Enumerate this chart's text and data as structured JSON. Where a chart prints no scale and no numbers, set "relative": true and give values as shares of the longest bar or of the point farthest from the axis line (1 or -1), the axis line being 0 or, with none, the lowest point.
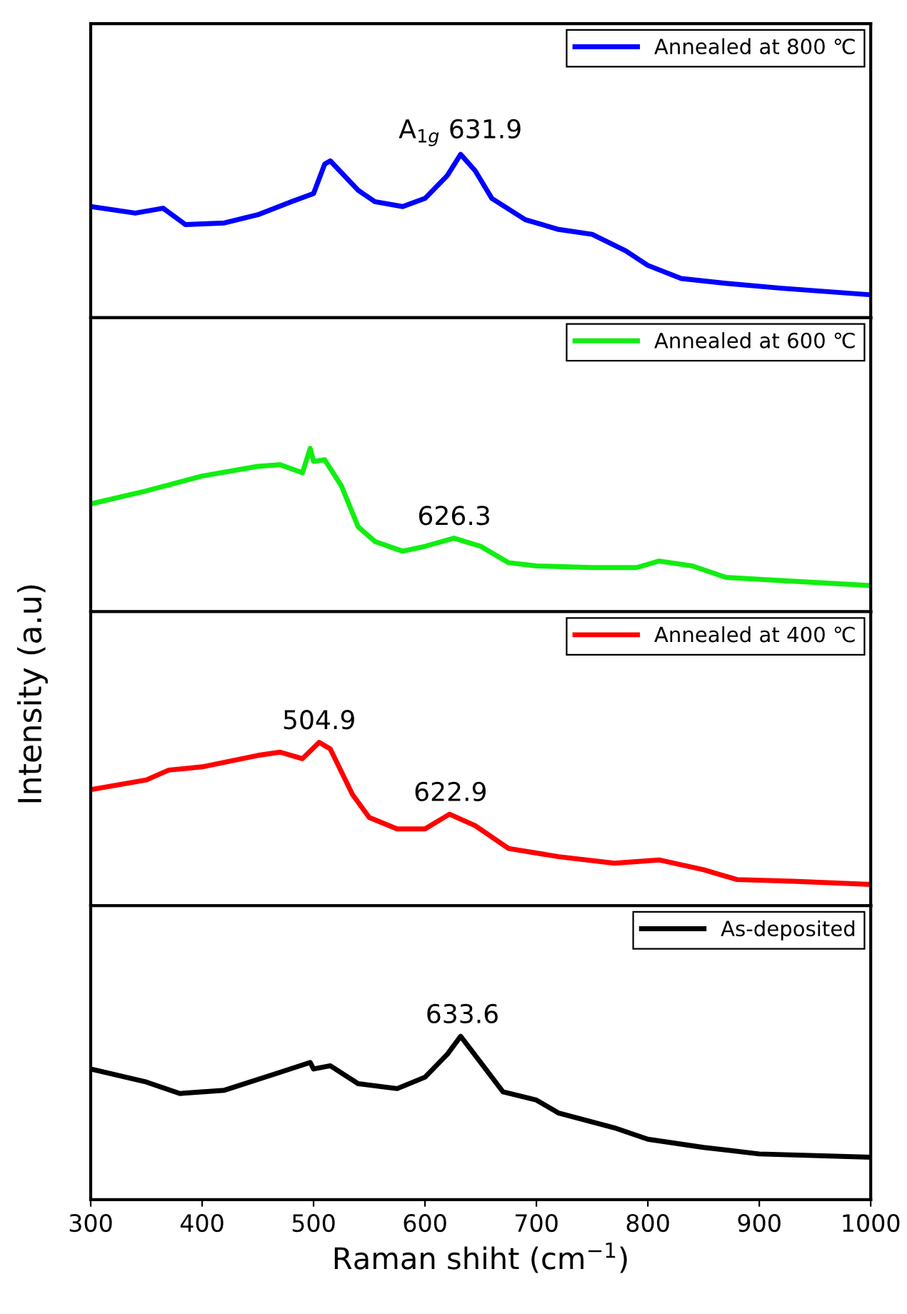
{
  "chart_data": [
    {
      "type": "line",
      "relative": true,
      "xlim": [
        300,
        1000
      ],
      "xticks": [
        300,
        400,
        500,
        600,
        700,
        800,
        900,
        1000
      ],
      "tick_labels": false,
      "legend": "top right",
      "series": [
        {
          "name": "Annealed at 800 ℃",
          "color": "#0000ff",
          "x": [
            300,
            340,
            365,
            385,
            420,
            450,
            480,
            500,
            510,
            515,
            540,
            555,
            580,
            600,
            620,
            632,
            645,
            660,
            690,
            720,
            750,
            780,
            800,
            830,
            870,
            920,
            1000
          ],
          "values": [
            0.68,
            0.64,
            0.67,
            0.57,
            0.58,
            0.63,
            0.71,
            0.76,
            0.94,
            0.96,
            0.78,
            0.71,
            0.68,
            0.73,
            0.87,
            1.0,
            0.9,
            0.73,
            0.6,
            0.54,
            0.51,
            0.41,
            0.32,
            0.24,
            0.21,
            0.18,
            0.14
          ]
        }
      ],
      "annotations": [
        {
          "text": "A$_{1g}$ 631.9",
          "x": 631.9,
          "y": 1.0
        }
      ]
    },
    {
      "type": "line",
      "relative": true,
      "xlim": [
        300,
        1000
      ],
      "xticks": [
        300,
        400,
        500,
        600,
        700,
        800,
        900,
        1000
      ],
      "tick_labels": false,
      "legend": "top right",
      "series": [
        {
          "name": "Annealed at 600 ℃",
          "color": "#11ee11",
          "x": [
            300,
            350,
            400,
            450,
            470,
            490,
            497,
            500,
            510,
            525,
            540,
            555,
            580,
            600,
            626,
            650,
            675,
            700,
            750,
            790,
            810,
            840,
            870,
            920,
            1000
          ],
          "values": [
            0.66,
            0.74,
            0.83,
            0.89,
            0.9,
            0.85,
            1.0,
            0.92,
            0.93,
            0.77,
            0.52,
            0.43,
            0.37,
            0.4,
            0.45,
            0.4,
            0.3,
            0.28,
            0.27,
            0.27,
            0.31,
            0.28,
            0.21,
            0.19,
            0.16
          ]
        }
      ],
      "annotations": [
        {
          "text": "626.3",
          "x": 626.3,
          "y": 0.45
        }
      ]
    },
    {
      "type": "line",
      "relative": true,
      "xlim": [
        300,
        1000
      ],
      "xticks": [
        300,
        400,
        500,
        600,
        700,
        800,
        900,
        1000
      ],
      "tick_labels": false,
      "legend": "top right",
      "ylabel": "Intensity (a.u)",
      "series": [
        {
          "name": "Annealed at 400 ℃",
          "color": "#ff0000",
          "x": [
            300,
            350,
            370,
            400,
            450,
            470,
            490,
            505,
            515,
            535,
            550,
            575,
            600,
            622,
            645,
            675,
            720,
            770,
            810,
            850,
            880,
            930,
            1000
          ],
          "values": [
            0.71,
            0.77,
            0.83,
            0.85,
            0.92,
            0.94,
            0.9,
            1.0,
            0.96,
            0.68,
            0.54,
            0.47,
            0.47,
            0.56,
            0.49,
            0.35,
            0.3,
            0.26,
            0.28,
            0.22,
            0.16,
            0.15,
            0.13
          ]
        }
      ],
      "annotations": [
        {
          "text": "504.9",
          "x": 504.9,
          "y": 1.0
        },
        {
          "text": "622.9",
          "x": 622.9,
          "y": 0.56
        }
      ]
    },
    {
      "type": "line",
      "relative": true,
      "xlim": [
        300,
        1000
      ],
      "xticks": [
        300,
        400,
        500,
        600,
        700,
        800,
        900,
        1000
      ],
      "tick_labels": "x",
      "legend": "top right",
      "xlabel": "Raman shiht (cm$^{−1}$)",
      "series": [
        {
          "name": "As-deposited",
          "color": "#000000",
          "x": [
            300,
            350,
            380,
            420,
            470,
            497,
            500,
            515,
            540,
            575,
            600,
            620,
            632,
            650,
            670,
            700,
            720,
            770,
            800,
            850,
            900,
            1000
          ],
          "values": [
            0.8,
            0.72,
            0.65,
            0.67,
            0.78,
            0.84,
            0.8,
            0.82,
            0.71,
            0.68,
            0.75,
            0.89,
            1.0,
            0.84,
            0.66,
            0.61,
            0.53,
            0.44,
            0.37,
            0.32,
            0.28,
            0.26
          ]
        }
      ],
      "annotations": [
        {
          "text": "633.6",
          "x": 633.6,
          "y": 1.0
        }
      ]
    }
  ]
}
